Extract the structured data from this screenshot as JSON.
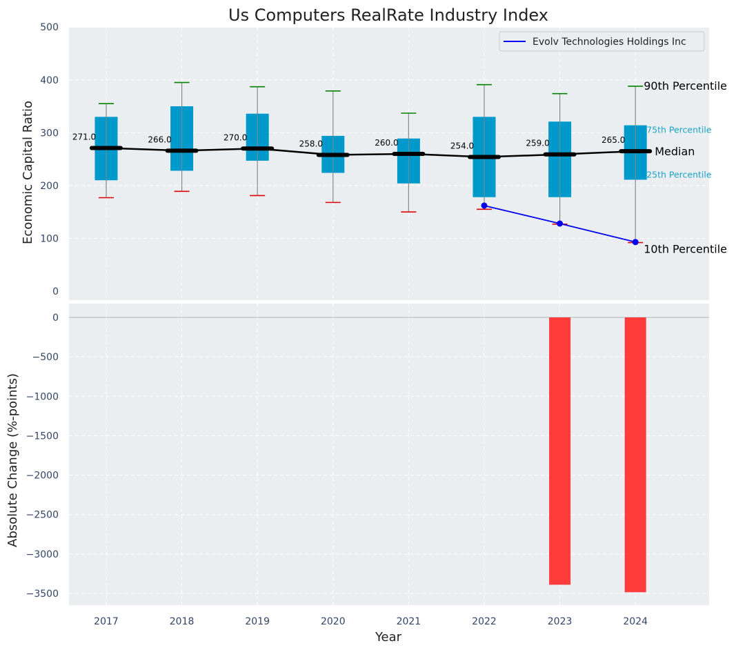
{
  "chart_data": [
    {
      "type": "box",
      "title": "Us Computers RealRate Industry Index",
      "ylabel": "Economic Capital Ratio",
      "ylim": [
        0,
        500
      ],
      "yticks": [
        0,
        100,
        200,
        300,
        400,
        500
      ],
      "categories": [
        "2017",
        "2018",
        "2019",
        "2020",
        "2021",
        "2022",
        "2023",
        "2024"
      ],
      "p10": [
        177,
        189,
        181,
        168,
        150,
        155,
        127,
        92
      ],
      "p25": [
        210,
        228,
        247,
        224,
        204,
        178,
        178,
        211
      ],
      "median": [
        271.0,
        266.0,
        270.0,
        258.0,
        260.0,
        254.0,
        259.0,
        265.0
      ],
      "median_labels": [
        "271.0",
        "266.0",
        "270.0",
        "258.0",
        "260.0",
        "254.0",
        "259.0",
        "265.0"
      ],
      "p75": [
        330,
        350,
        336,
        294,
        289,
        330,
        321,
        314
      ],
      "p90": [
        355,
        395,
        387,
        379,
        337,
        391,
        374,
        388
      ],
      "company_series": {
        "name": "Evolv Technologies Holdings Inc",
        "x": [
          "2022",
          "2023",
          "2024"
        ],
        "values": [
          162,
          128,
          93
        ]
      },
      "annotations": {
        "p90": "90th Percentile",
        "p75": "75th Percentile",
        "median": "Median",
        "p25": "25th Percentile",
        "p10": "10th Percentile"
      },
      "legend": "top-right",
      "grid": true
    },
    {
      "type": "bar",
      "xlabel": "Year",
      "ylabel": "Absolute Change (%-points)",
      "ylim": [
        -3670,
        0
      ],
      "yticks": [
        0,
        -500,
        -1000,
        -1500,
        -2000,
        -2500,
        -3000,
        -3500
      ],
      "ytick_labels": [
        "0",
        "−500",
        "−1000",
        "−1500",
        "−2000",
        "−2500",
        "−3000",
        "−3500"
      ],
      "categories": [
        "2017",
        "2018",
        "2019",
        "2020",
        "2021",
        "2022",
        "2023",
        "2024"
      ],
      "values": [
        null,
        null,
        null,
        null,
        null,
        null,
        -3390,
        -3485
      ],
      "grid": true
    }
  ],
  "colors": {
    "box": "#0099cc",
    "median": "#000000",
    "whisker": "#888888",
    "cap_high": "#008000",
    "cap_low": "#dd0000",
    "company": "#0000ee",
    "bar": "#ff3b3b",
    "panel": "#eaeef0",
    "pct_label": "#1aa3c8"
  }
}
